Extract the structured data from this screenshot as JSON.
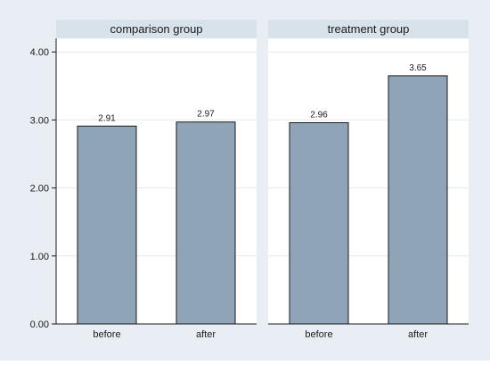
{
  "chart_data": {
    "type": "bar",
    "panels": [
      {
        "title": "comparison group",
        "categories": [
          "before",
          "after"
        ],
        "values": [
          2.91,
          2.97
        ]
      },
      {
        "title": "treatment group",
        "categories": [
          "before",
          "after"
        ],
        "values": [
          2.96,
          3.65
        ]
      }
    ],
    "yticks": [
      "0.00",
      "1.00",
      "2.00",
      "3.00",
      "4.00"
    ],
    "ylim": [
      0,
      4.2
    ],
    "grid": true,
    "value_labels": [
      "2.91",
      "2.97",
      "2.96",
      "3.65"
    ],
    "colors": {
      "outer_background": "#e8eef3",
      "panel_header": "#d8e2ea",
      "bar_fill": "#90a4b7",
      "bar_stroke": "#1a1a1a",
      "gridline": "#e3e9ee"
    }
  }
}
